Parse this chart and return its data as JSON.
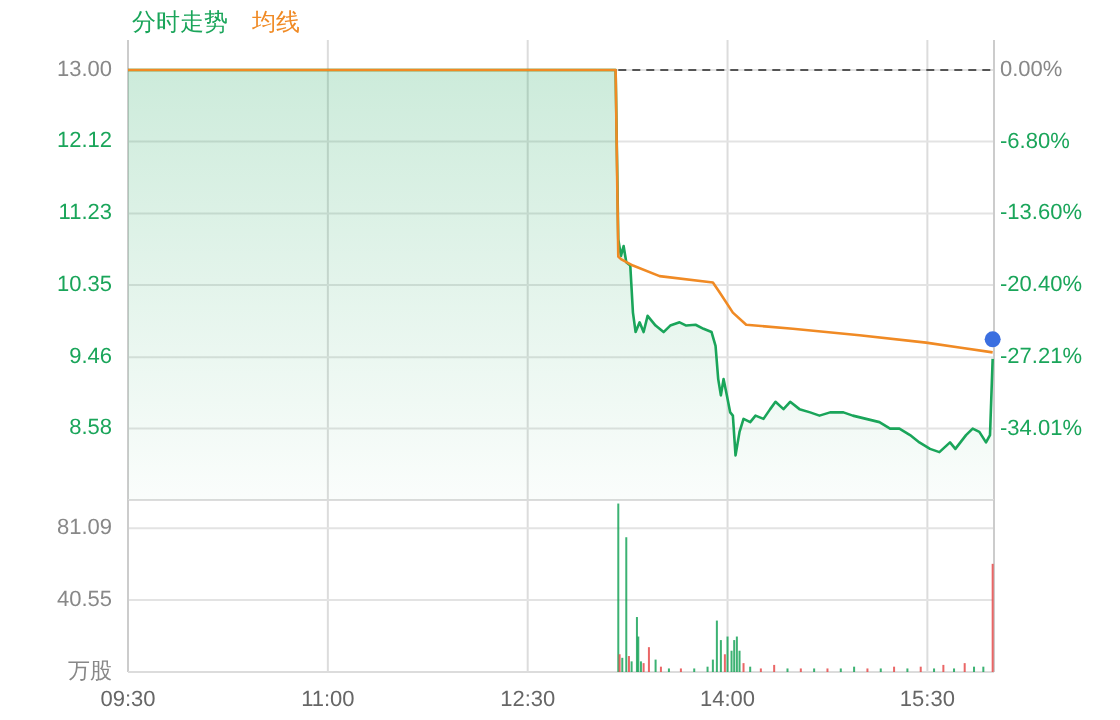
{
  "chart_data": [
    {
      "type": "line",
      "legend": "top left",
      "grid": true,
      "tick_labels": "y",
      "xlim": [
        9.5,
        16.0
      ],
      "xticks": [
        {
          "value": 9.5,
          "label": null
        },
        {
          "value": 11.0,
          "label": null
        },
        {
          "value": 12.5,
          "label": null
        },
        {
          "value": 14.0,
          "label": null
        },
        {
          "value": 15.5,
          "label": null
        }
      ],
      "ylim": [
        7.7,
        13.37
      ],
      "yticks": [
        {
          "value": 13,
          "label": "13.00"
        },
        12.12,
        11.23,
        10.35,
        9.46,
        8.58
      ],
      "y2lim": [
        -40.77,
        2.85
      ],
      "y2ticks": [
        {
          "value": 0,
          "label": "0.00%"
        },
        {
          "value": -6.8,
          "label": "-6.80%"
        },
        {
          "value": -13.6,
          "label": "-13.60%"
        },
        {
          "value": -20.4,
          "label": "-20.40%"
        },
        {
          "value": -27.21,
          "label": "-27.21%"
        },
        {
          "value": -34.01,
          "label": "-34.01%"
        }
      ],
      "ref_lines": [
        {
          "axis": "y",
          "value": 13.0,
          "color": "#555555",
          "line_style": "dashed"
        }
      ],
      "series": [
        {
          "name": "分时走势",
          "type": "area",
          "color": "#1aa55a",
          "x": [
            9.5,
            13.16,
            13.18,
            13.2,
            13.22,
            13.24,
            13.27,
            13.29,
            13.31,
            13.34,
            13.37,
            13.4,
            13.46,
            13.52,
            13.57,
            13.64,
            13.69,
            13.76,
            13.82,
            13.88,
            13.91,
            13.93,
            13.95,
            13.97,
            13.99,
            14.02,
            14.04,
            14.06,
            14.09,
            14.12,
            14.17,
            14.21,
            14.27,
            14.32,
            14.36,
            14.42,
            14.47,
            14.54,
            14.62,
            14.69,
            14.77,
            14.87,
            14.94,
            15.04,
            15.14,
            15.22,
            15.29,
            15.37,
            15.44,
            15.52,
            15.59,
            15.67,
            15.71,
            15.79,
            15.84,
            15.89,
            15.94,
            15.97,
            15.99
          ],
          "values": [
            13.0,
            13.0,
            10.91,
            10.71,
            10.83,
            10.63,
            10.59,
            10.01,
            9.77,
            9.89,
            9.77,
            9.97,
            9.85,
            9.77,
            9.85,
            9.89,
            9.85,
            9.86,
            9.81,
            9.77,
            9.6,
            9.19,
            8.99,
            9.19,
            9.03,
            8.78,
            8.74,
            8.25,
            8.54,
            8.7,
            8.66,
            8.74,
            8.7,
            8.82,
            8.91,
            8.82,
            8.91,
            8.82,
            8.78,
            8.74,
            8.78,
            8.78,
            8.74,
            8.7,
            8.66,
            8.58,
            8.58,
            8.5,
            8.41,
            8.33,
            8.29,
            8.41,
            8.33,
            8.5,
            8.58,
            8.54,
            8.41,
            8.5,
            9.44
          ]
        },
        {
          "name": "均线",
          "type": "line",
          "color": "#f08a24",
          "x": [
            9.5,
            13.16,
            13.18,
            13.2,
            13.29,
            13.49,
            13.89,
            13.94,
            14.04,
            14.14,
            14.49,
            14.99,
            15.49,
            15.74,
            15.99
          ],
          "values": [
            13.0,
            13.0,
            10.7,
            10.67,
            10.59,
            10.46,
            10.38,
            10.26,
            10.01,
            9.86,
            9.81,
            9.73,
            9.64,
            9.58,
            9.52
          ]
        },
        {
          "type": "scatter",
          "color": "#3b6fe0",
          "x": [
            15.99
          ],
          "values": [
            9.68
          ]
        }
      ]
    },
    {
      "type": "bar",
      "grid": true,
      "xlim": [
        9.5,
        16.0
      ],
      "xticks": [
        {
          "value": 9.5,
          "label": "09:30"
        },
        {
          "value": 11.0,
          "label": "11:00"
        },
        {
          "value": 12.5,
          "label": "12:30"
        },
        {
          "value": 14.0,
          "label": "14:00"
        },
        {
          "value": 15.5,
          "label": "15:30"
        }
      ],
      "ylim": [
        0,
        97
      ],
      "yticks": [
        {
          "value": 0,
          "label": "万股"
        },
        40.55,
        81.09
      ],
      "x": [
        13.18,
        13.19,
        13.21,
        13.24,
        13.26,
        13.28,
        13.32,
        13.33,
        13.35,
        13.37,
        13.41,
        13.46,
        13.5,
        13.56,
        13.65,
        13.75,
        13.85,
        13.89,
        13.92,
        13.95,
        13.98,
        14.0,
        14.03,
        14.05,
        14.07,
        14.09,
        14.12,
        14.17,
        14.25,
        14.35,
        14.45,
        14.55,
        14.65,
        14.75,
        14.85,
        14.95,
        15.05,
        15.15,
        15.25,
        15.35,
        15.45,
        15.55,
        15.62,
        15.7,
        15.78,
        15.85,
        15.92,
        15.99
      ],
      "values": [
        95,
        10,
        8,
        76,
        9,
        6,
        31,
        20,
        6,
        5,
        14,
        7,
        3,
        2,
        2,
        2,
        3,
        7,
        29,
        18,
        10,
        20,
        12,
        18,
        20,
        12,
        5,
        3,
        2,
        4,
        2,
        2,
        2,
        2,
        2,
        3,
        2,
        2,
        3,
        2,
        3,
        2,
        4,
        2,
        5,
        3,
        3,
        61
      ],
      "colors": [
        "#1aa55a",
        "#e64b4b",
        "#1aa55a",
        "#1aa55a",
        "#e64b4b",
        "#1aa55a",
        "#1aa55a",
        "#1aa55a",
        "#1aa55a",
        "#e64b4b",
        "#e64b4b",
        "#1aa55a",
        "#e64b4b",
        "#1aa55a",
        "#e64b4b",
        "#1aa55a",
        "#1aa55a",
        "#1aa55a",
        "#1aa55a",
        "#1aa55a",
        "#e64b4b",
        "#1aa55a",
        "#1aa55a",
        "#1aa55a",
        "#1aa55a",
        "#1aa55a",
        "#e64b4b",
        "#1aa55a",
        "#e64b4b",
        "#e64b4b",
        "#1aa55a",
        "#e64b4b",
        "#1aa55a",
        "#e64b4b",
        "#1aa55a",
        "#1aa55a",
        "#e64b4b",
        "#1aa55a",
        "#e64b4b",
        "#1aa55a",
        "#e64b4b",
        "#1aa55a",
        "#e64b4b",
        "#1aa55a",
        "#e64b4b",
        "#1aa55a",
        "#1aa55a",
        "#e64b4b"
      ]
    }
  ]
}
